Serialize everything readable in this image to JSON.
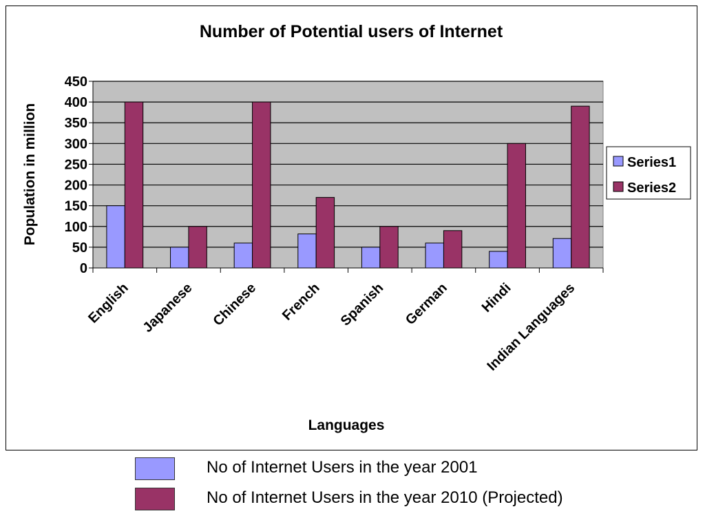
{
  "chart_data": {
    "type": "bar",
    "title": "Number of Potential users of Internet",
    "xlabel": "Languages",
    "ylabel": "Population in million",
    "categories": [
      "English",
      "Japanese",
      "Chinese",
      "French",
      "Spanish",
      "German",
      "Hindi",
      "Indian Languages"
    ],
    "series": [
      {
        "name": "Series1",
        "color": "#9999ff",
        "values": [
          150,
          50,
          60,
          82,
          50,
          60,
          40,
          71
        ]
      },
      {
        "name": "Series2",
        "color": "#993366",
        "values": [
          400,
          100,
          400,
          170,
          100,
          90,
          300,
          390
        ]
      }
    ],
    "ylim": [
      0,
      450
    ],
    "yticks": [
      0,
      50,
      100,
      150,
      200,
      250,
      300,
      350,
      400,
      450
    ],
    "grid": true,
    "plot_background": "#c0c0c0",
    "legend": "right"
  },
  "external_legend": [
    {
      "label": "No of Internet Users in the year 2001",
      "color": "#9999ff"
    },
    {
      "label": "No of Internet Users in the year 2010 (Projected)",
      "color": "#993366"
    }
  ]
}
